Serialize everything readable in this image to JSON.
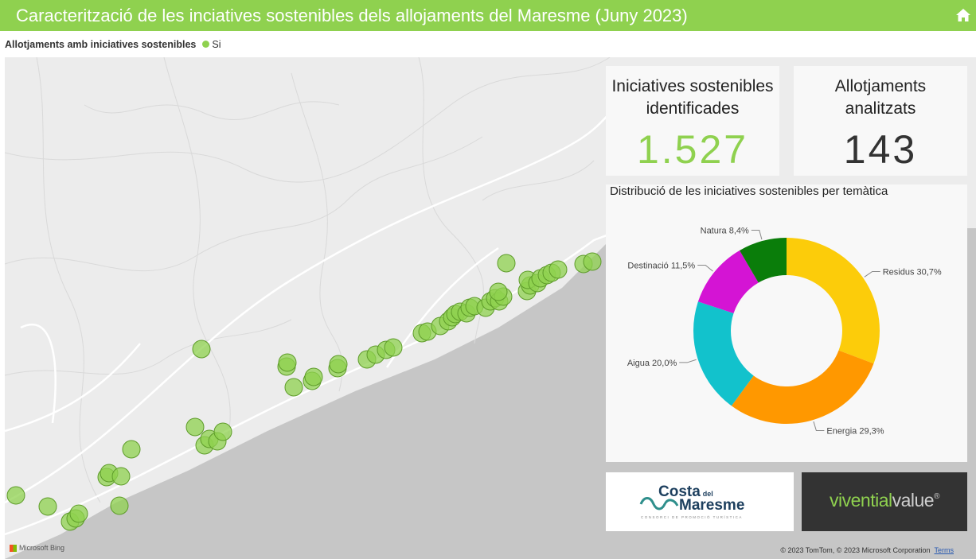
{
  "header": {
    "title": "Caracterització de les inciatives sostenibles dels allojaments del Maresme (Juny 2023)"
  },
  "legend": {
    "title": "Allotjaments amb iniciatives sostenibles",
    "item": "Si",
    "color": "#8fd14f"
  },
  "kpis": [
    {
      "title_line1": "Iniciatives sostenibles",
      "title_line2": "identificades",
      "value": "1.527",
      "color": "#8fd14f"
    },
    {
      "title_line1": "Allotjaments",
      "title_line2": "analitzats",
      "value": "143",
      "color": "#333333"
    }
  ],
  "map": {
    "attribution_left": "Microsoft Bing",
    "attribution_right": "© 2023 TomTom, © 2023 Microsoft Corporation",
    "terms": "Terms"
  },
  "chart_data": {
    "type": "pie",
    "title": "Distribució de les iniciatives sostenibles per temàtica",
    "donut": true,
    "slices": [
      {
        "label": "Residus 30,7%",
        "value": 30.7,
        "color": "#fccc0a"
      },
      {
        "label": "Energia 29,3%",
        "value": 29.3,
        "color": "#ff9800"
      },
      {
        "label": "Aigua 20,0%",
        "value": 20.0,
        "color": "#12c2cc"
      },
      {
        "label": "Destinació 11,5%",
        "value": 11.5,
        "color": "#d414d4"
      },
      {
        "label": "Natura 8,4%",
        "value": 8.4,
        "color": "#0a7d0a"
      }
    ]
  },
  "logos": {
    "costa": {
      "line1": "Costa",
      "small": "del",
      "line2": "Maresme",
      "tagline": "CONSORCI DE PROMOCIÓ TURÍSTICA"
    },
    "vivential": {
      "part1": "vivential",
      "part2": "value",
      "mark": "®"
    }
  }
}
